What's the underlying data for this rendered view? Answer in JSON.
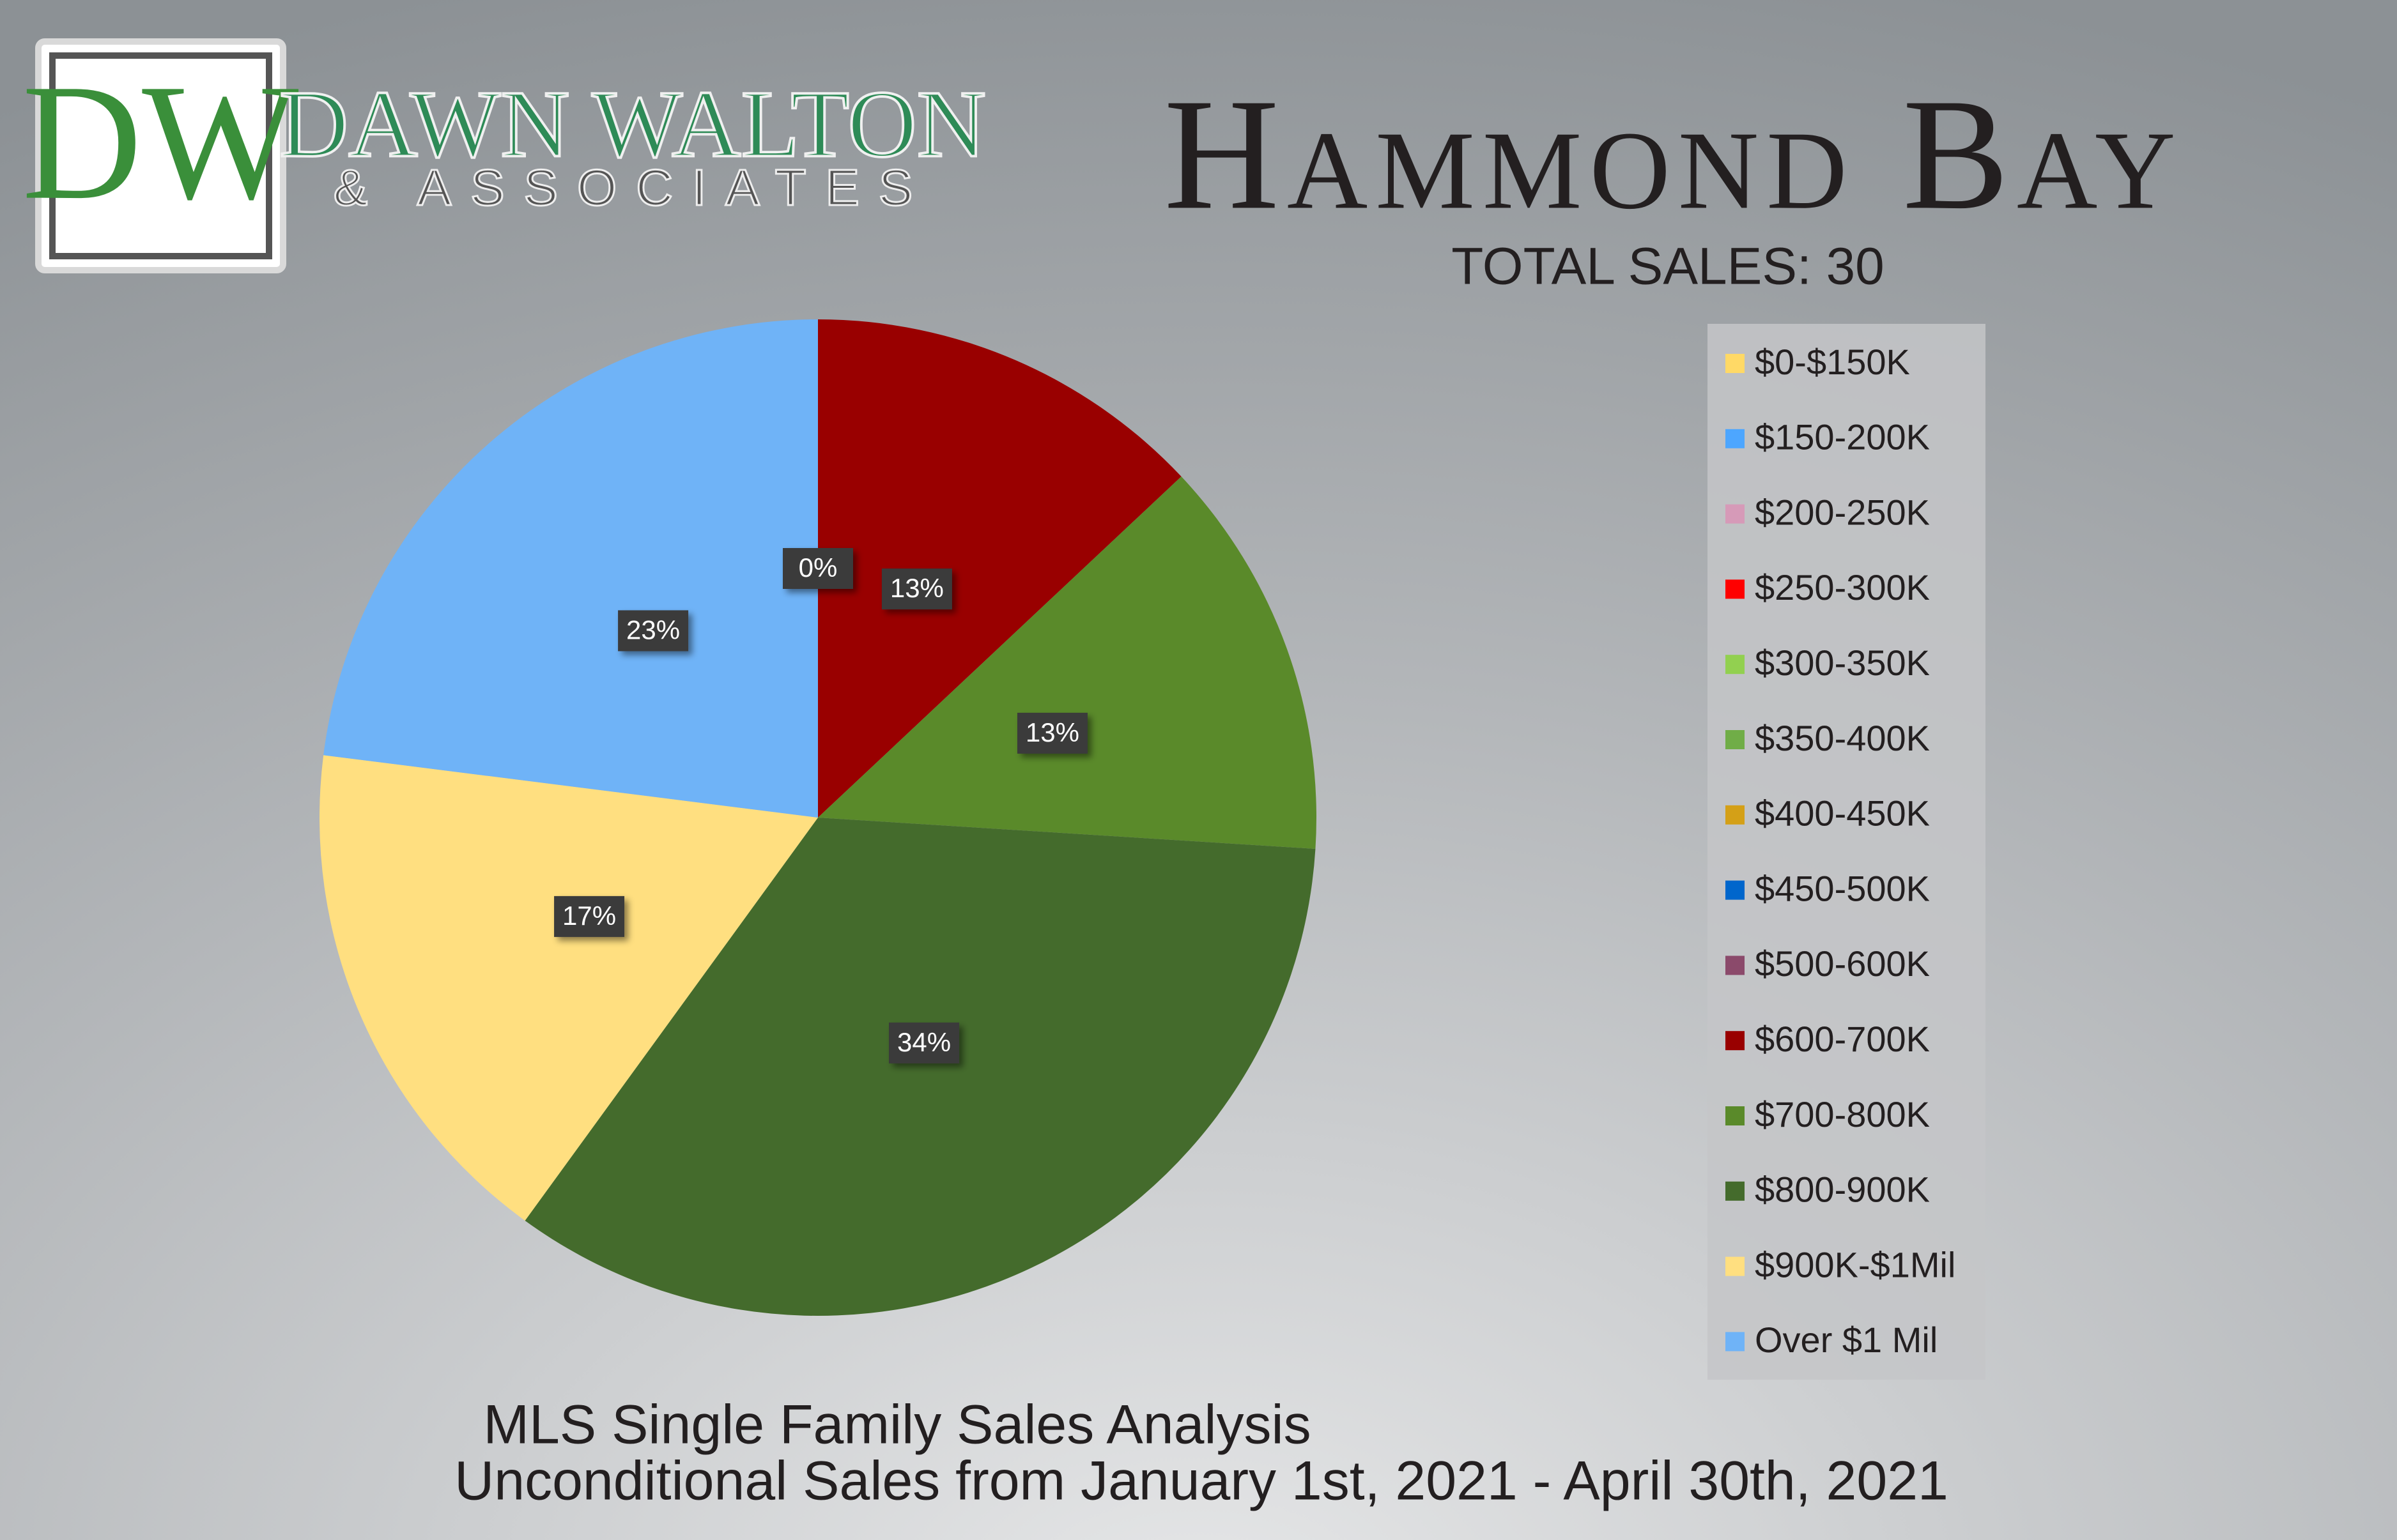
{
  "logo": {
    "initials": "DW",
    "name": "DAWN WALTON",
    "tagline": "& ASSOCIATES"
  },
  "chart_data": {
    "type": "pie",
    "title": "Hammond Bay",
    "subtitle": "TOTAL SALES: 30",
    "categories": [
      "$0-$150K",
      "$150-200K",
      "$200-250K",
      "$250-300K",
      "$300-350K",
      "$350-400K",
      "$400-450K",
      "$450-500K",
      "$500-600K",
      "$600-700K",
      "$700-800K",
      "$800-900K",
      "$900K-$1Mil",
      "Over $1 Mil"
    ],
    "values": [
      0,
      0,
      0,
      0,
      0,
      0,
      0,
      0,
      0,
      13,
      13,
      34,
      17,
      23
    ],
    "value_labels": [
      null,
      null,
      null,
      null,
      null,
      null,
      null,
      null,
      "0%",
      "13%",
      "13%",
      "34%",
      "17%",
      "23%"
    ],
    "colors": [
      "#ffd966",
      "#4da6ff",
      "#d69ab8",
      "#ff0000",
      "#92d050",
      "#70ad47",
      "#d4a017",
      "#0066cc",
      "#8b4a6b",
      "#990000",
      "#5a8a2a",
      "#446b2c",
      "#ffdf80",
      "#6fb3f7"
    ],
    "legend": "right",
    "footer": [
      "MLS Single Family Sales Analysis",
      "Unconditional Sales from January 1st, 2021 - April 30th, 2021"
    ]
  }
}
